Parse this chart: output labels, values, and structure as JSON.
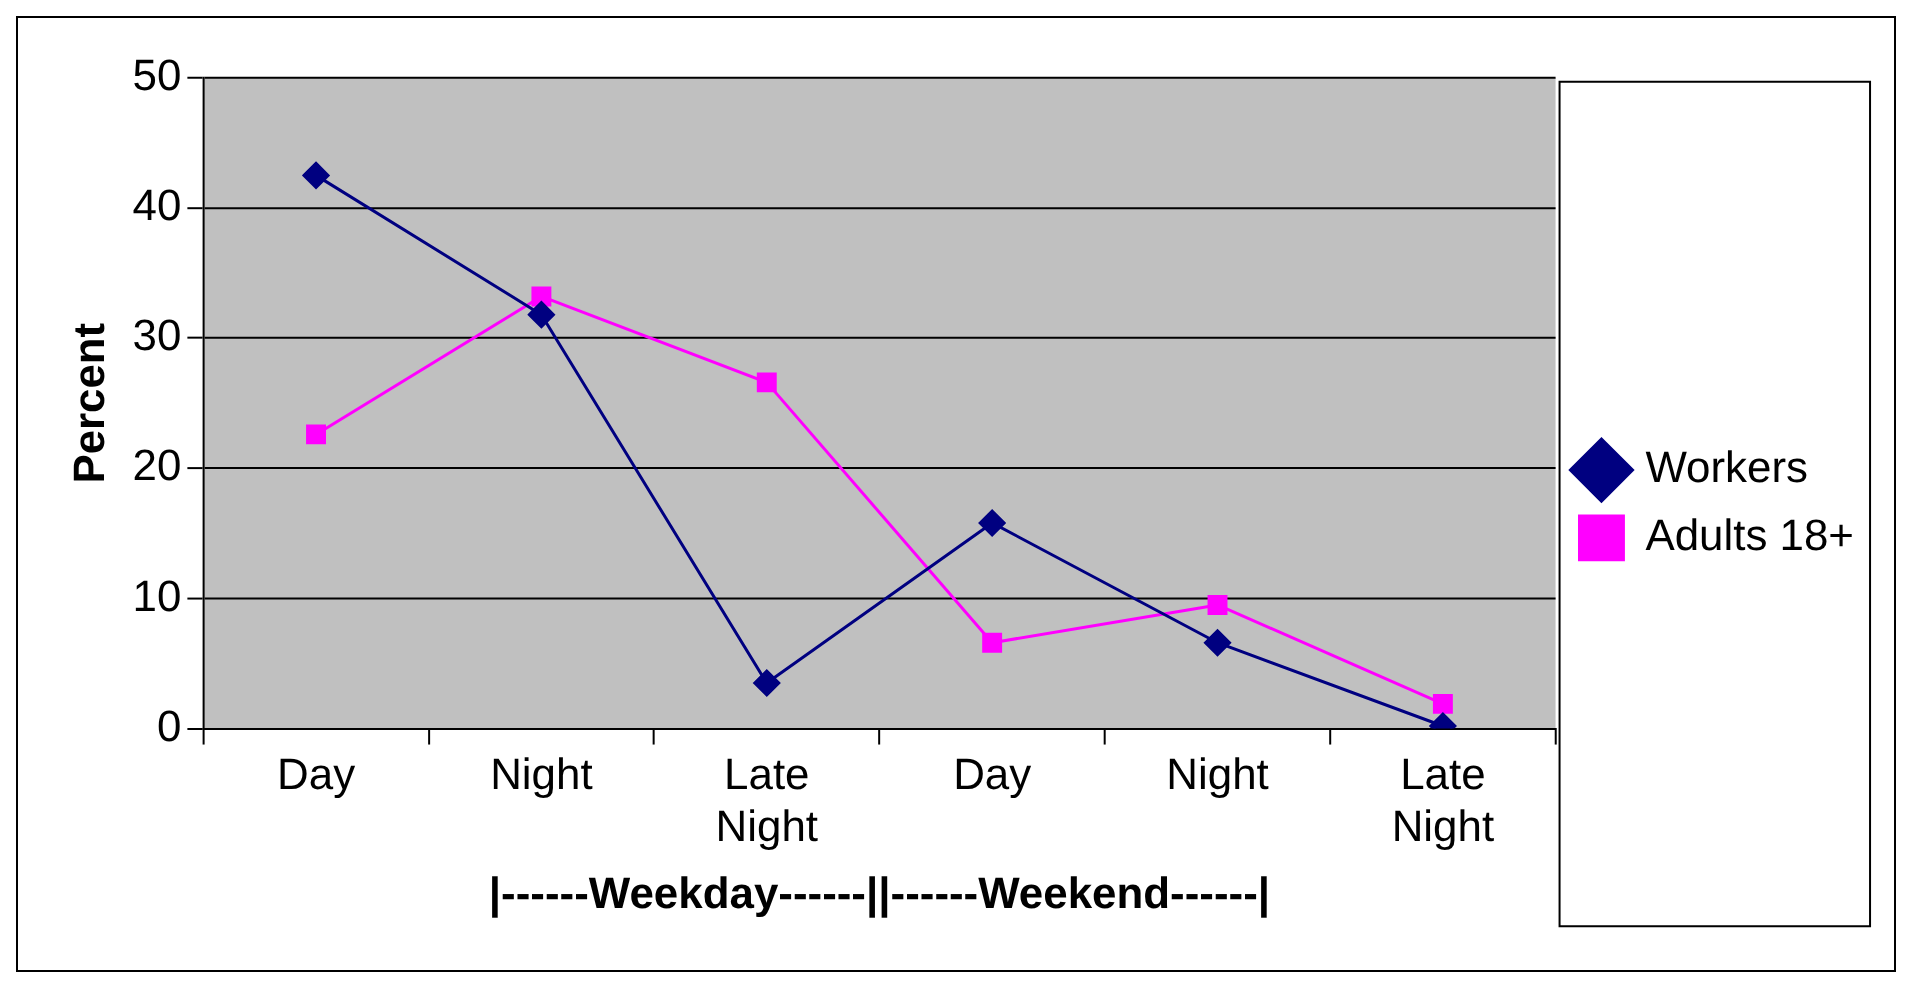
{
  "chart_data": {
    "type": "line",
    "ylabel": "Percent",
    "xlabel": "|------Weekday------||------Weekend------|",
    "categories": [
      "Day",
      "Night",
      "Late Night",
      "Day",
      "Night",
      "Late Night"
    ],
    "series": [
      {
        "name": "Workers",
        "color": "#000080",
        "marker": "diamond",
        "values": [
          42.5,
          31.8,
          3.5,
          15.8,
          6.6,
          0.2
        ]
      },
      {
        "name": "Adults 18+",
        "color": "#ff00ff",
        "marker": "square",
        "values": [
          22.6,
          33.2,
          26.6,
          6.6,
          9.5,
          1.9
        ]
      }
    ],
    "ylim": [
      0,
      50
    ],
    "yticks": [
      0,
      10,
      20,
      30,
      40,
      50
    ],
    "grid": "y",
    "legend": "right"
  }
}
